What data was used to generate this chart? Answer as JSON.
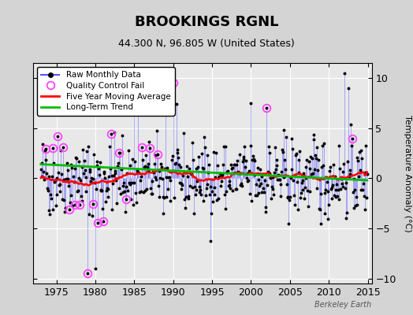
{
  "title": "BROOKINGS RGNL",
  "subtitle": "44.300 N, 96.805 W (United States)",
  "credit": "Berkeley Earth",
  "ylabel": "Temperature Anomaly (°C)",
  "xlim": [
    1972.0,
    2015.5
  ],
  "ylim": [
    -10.5,
    11.5
  ],
  "yticks": [
    -10,
    -5,
    0,
    5,
    10
  ],
  "xticks": [
    1975,
    1980,
    1985,
    1990,
    1995,
    2000,
    2005,
    2010,
    2015
  ],
  "fig_bg_color": "#d4d4d4",
  "plot_bg_color": "#e8e8e8",
  "grid_color": "#ffffff",
  "raw_line_color": "#5555ff",
  "raw_dot_color": "#000000",
  "moving_avg_color": "#ff0000",
  "trend_color": "#00bb00",
  "qc_fail_color": "#ff44ff",
  "seed": 42
}
